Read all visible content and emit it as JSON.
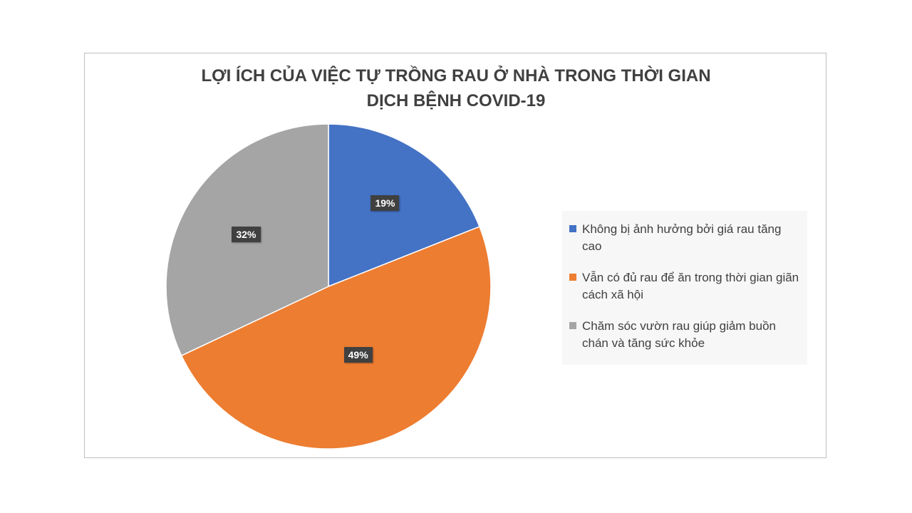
{
  "chart_data": {
    "type": "pie",
    "title": "LỢI ÍCH CỦA VIỆC TỰ TRỒNG RAU Ở NHÀ TRONG THỜI GIAN\nDỊCH BỆNH COVID-19",
    "categories": [
      "Không bị ảnh hưởng bởi giá rau tăng cao",
      "Vẫn có đủ rau để ăn trong thời gian giãn cách xã hội",
      "Chăm sóc vườn rau giúp giảm buồn chán và tăng sức khỏe"
    ],
    "values": [
      19,
      49,
      32
    ],
    "labels": [
      "19%",
      "49%",
      "32%"
    ],
    "colors": [
      "#4472c4",
      "#ed7d31",
      "#a5a5a5"
    ],
    "legend_position": "right"
  }
}
